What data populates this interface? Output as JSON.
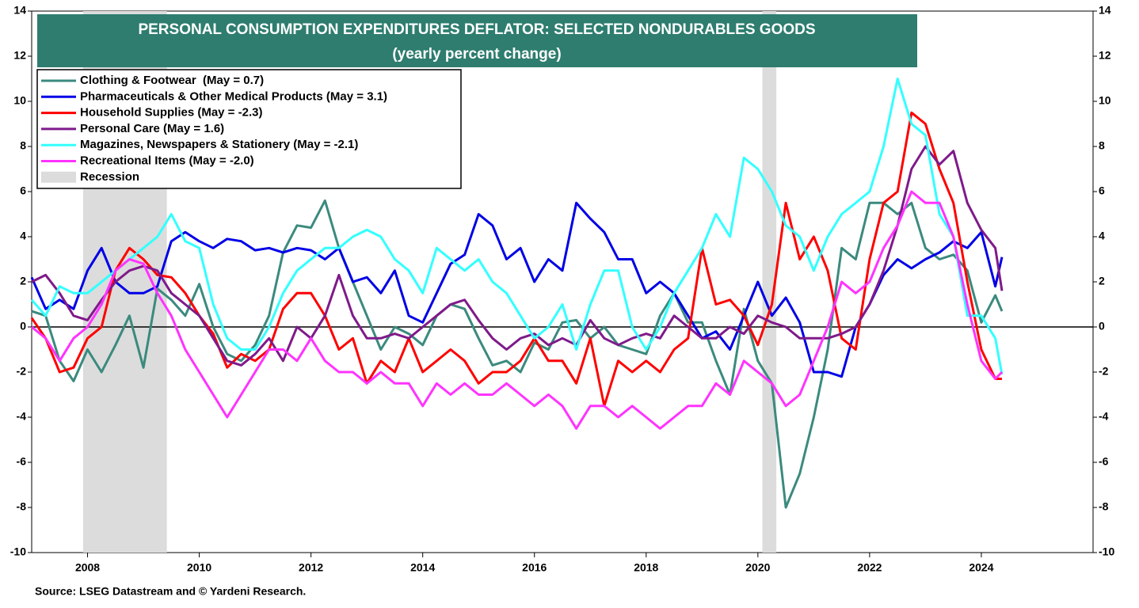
{
  "chart_data": {
    "type": "line",
    "title": "PERSONAL CONSUMPTION EXPENDITURES DEFLATOR: SELECTED NONDURABLES GOODS",
    "subtitle": "(yearly percent change)",
    "source": "Source: LSEG Datastream and © Yardeni Research.",
    "x": [
      2007,
      2007.25,
      2007.5,
      2007.75,
      2008,
      2008.25,
      2008.5,
      2008.75,
      2009,
      2009.25,
      2009.5,
      2009.75,
      2010,
      2010.25,
      2010.5,
      2010.75,
      2011,
      2011.25,
      2011.5,
      2011.75,
      2012,
      2012.25,
      2012.5,
      2012.75,
      2013,
      2013.25,
      2013.5,
      2013.75,
      2014,
      2014.25,
      2014.5,
      2014.75,
      2015,
      2015.25,
      2015.5,
      2015.75,
      2016,
      2016.25,
      2016.5,
      2016.75,
      2017,
      2017.25,
      2017.5,
      2017.75,
      2018,
      2018.25,
      2018.5,
      2018.75,
      2019,
      2019.25,
      2019.5,
      2019.75,
      2020,
      2020.25,
      2020.5,
      2020.75,
      2021,
      2021.25,
      2021.5,
      2021.75,
      2022,
      2022.25,
      2022.5,
      2022.75,
      2023,
      2023.25,
      2023.5,
      2023.75,
      2024,
      2024.25,
      2024.37
    ],
    "series": [
      {
        "name": "Clothing & Footwear  (May = 0.7)",
        "color": "#3b8a7e",
        "values": [
          0.7,
          0.5,
          -1.5,
          -2.4,
          -1,
          -2,
          -0.8,
          0.5,
          -1.8,
          1.7,
          1.2,
          0.5,
          1.9,
          0,
          -1.2,
          -1.5,
          -0.8,
          0.5,
          3.3,
          4.5,
          4.4,
          5.6,
          3.5,
          2,
          0.5,
          -1,
          0,
          -0.3,
          -0.8,
          0.5,
          1,
          0.8,
          -0.5,
          -1.7,
          -1.5,
          -2,
          -0.7,
          -1,
          0.2,
          0.3,
          -0.5,
          0,
          -0.8,
          -1,
          -1.2,
          0.5,
          1.5,
          0.2,
          0.2,
          -1.5,
          -3,
          0.8,
          -1.5,
          -2.5,
          -8,
          -6.5,
          -4,
          -1,
          3.5,
          3,
          5.5,
          5.5,
          5,
          5.5,
          3.5,
          3,
          3.2,
          2.5,
          0.2,
          1.4,
          0.7
        ]
      },
      {
        "name": "Pharmaceuticals & Other Medical Products (May = 3.1)",
        "color": "#0000e6",
        "values": [
          2.2,
          0.8,
          1.2,
          0.8,
          2.5,
          3.5,
          2,
          1.5,
          1.5,
          1.8,
          3.8,
          4.2,
          3.8,
          3.5,
          3.9,
          3.8,
          3.4,
          3.5,
          3.3,
          3.5,
          3.4,
          3,
          3.5,
          2,
          2.2,
          1.5,
          2.5,
          0.5,
          0.2,
          1.5,
          2.8,
          3.2,
          5,
          4.5,
          3,
          3.5,
          2,
          3,
          2.5,
          5.5,
          4.8,
          4.2,
          3,
          3,
          1.5,
          2,
          1.5,
          0.5,
          -0.5,
          -0.2,
          -1,
          0.5,
          2,
          0.5,
          1.3,
          0.2,
          -2,
          -2,
          -2.2,
          0,
          1,
          2.3,
          3,
          2.6,
          3,
          3.3,
          3.8,
          3.5,
          4.2,
          1.8,
          3.1
        ]
      },
      {
        "name": "Household Supplies (May = -2.3)",
        "color": "#ff0000",
        "values": [
          0.4,
          -0.5,
          -2,
          -1.8,
          -0.5,
          0,
          2.5,
          3.5,
          3,
          2.3,
          2.2,
          1.5,
          0.5,
          -0.3,
          -1.8,
          -1.2,
          -1.5,
          -1,
          0.8,
          1.5,
          1.5,
          0.5,
          -1,
          -0.5,
          -2.5,
          -1.5,
          -2,
          -0.5,
          -2,
          -1.5,
          -1,
          -1.5,
          -2.5,
          -2,
          -2,
          -1.5,
          -0.5,
          -1.5,
          -1.5,
          -2.5,
          -0.5,
          -3.5,
          -1.5,
          -2,
          -1.5,
          -2,
          -1,
          -0.5,
          3.5,
          1,
          1.2,
          0.5,
          -0.8,
          1,
          5.5,
          3,
          4,
          2.5,
          -0.5,
          -1,
          3,
          5.5,
          6,
          9.5,
          9,
          7,
          5.5,
          2,
          -1,
          -2.3,
          -2.3
        ]
      },
      {
        "name": "Personal Care (May = 1.6)",
        "color": "#7f1a8a",
        "values": [
          2,
          2.3,
          1.5,
          0.5,
          0.3,
          1.2,
          2,
          2.5,
          2.7,
          2.5,
          1.5,
          1,
          0.5,
          -0.5,
          -1.5,
          -1.7,
          -1.2,
          -0.5,
          -1.5,
          0,
          -0.5,
          0.5,
          2.3,
          0.5,
          -0.5,
          -0.5,
          -0.3,
          -0.5,
          0,
          0.5,
          1,
          1.2,
          0.3,
          -0.5,
          -1,
          -0.5,
          -0.3,
          -0.8,
          -0.5,
          -0.8,
          0.3,
          -0.5,
          -0.8,
          -0.5,
          -0.3,
          -0.5,
          0.5,
          0,
          -0.5,
          -0.5,
          0,
          -0.3,
          0.5,
          0.2,
          0,
          -0.5,
          -0.5,
          -0.5,
          -0.3,
          0,
          1,
          2.5,
          4.5,
          7,
          8,
          7.2,
          7.8,
          5.5,
          4.3,
          3.5,
          1.6
        ]
      },
      {
        "name": "Magazines, Newspapers & Stationery (May = -2.1)",
        "color": "#33ffff",
        "values": [
          1.2,
          0.5,
          1.8,
          1.5,
          1.5,
          2,
          2.5,
          3,
          3.5,
          4,
          5,
          3.8,
          3.5,
          1,
          -0.5,
          -1,
          -1,
          0,
          1.5,
          2.5,
          3,
          3.5,
          3.5,
          4,
          4.3,
          4,
          3,
          2.5,
          1.5,
          3.5,
          3,
          2.5,
          3,
          2,
          1.5,
          0.5,
          -0.5,
          0,
          1,
          -1,
          1,
          2.5,
          2.5,
          0,
          -1,
          0,
          1.5,
          2.5,
          3.5,
          5,
          4,
          7.5,
          7,
          6,
          4.5,
          4,
          2.5,
          4,
          5,
          5.5,
          6,
          8,
          11,
          9,
          8.5,
          5,
          4,
          0.5,
          0.5,
          -0.5,
          -2.1
        ]
      },
      {
        "name": "Recreational Items (May = -2.0)",
        "color": "#ff33ff",
        "values": [
          0,
          -0.5,
          -1.5,
          -0.5,
          0,
          1,
          2.5,
          3,
          2.8,
          1.5,
          0.5,
          -1,
          -2,
          -3,
          -4,
          -3,
          -2,
          -1,
          -1,
          -1.5,
          -0.5,
          -1.5,
          -2,
          -2,
          -2.5,
          -2,
          -2.5,
          -2.5,
          -3.5,
          -2.5,
          -3,
          -2.5,
          -3,
          -3,
          -2.5,
          -3,
          -3.5,
          -3,
          -3.5,
          -4.5,
          -3.5,
          -3.5,
          -4,
          -3.5,
          -4,
          -4.5,
          -4,
          -3.5,
          -3.5,
          -2.5,
          -3,
          -1.5,
          -2,
          -2.5,
          -3.5,
          -3,
          -1.5,
          0,
          2,
          1.5,
          2,
          3.5,
          4.5,
          6,
          5.5,
          5.5,
          4,
          1,
          -1.5,
          -2.3,
          -2.0
        ]
      }
    ],
    "recession_label": "Recession",
    "recessions": [
      [
        2007.92,
        2009.42
      ],
      [
        2020.08,
        2020.33
      ]
    ],
    "xlim": [
      2007,
      2026
    ],
    "xticks": [
      2008,
      2010,
      2012,
      2014,
      2016,
      2018,
      2020,
      2022,
      2024
    ],
    "ylim": [
      -10,
      14
    ],
    "yticks": [
      -10,
      -8,
      -6,
      -4,
      -2,
      0,
      2,
      4,
      6,
      8,
      10,
      12,
      14
    ],
    "legend": "upper left"
  }
}
